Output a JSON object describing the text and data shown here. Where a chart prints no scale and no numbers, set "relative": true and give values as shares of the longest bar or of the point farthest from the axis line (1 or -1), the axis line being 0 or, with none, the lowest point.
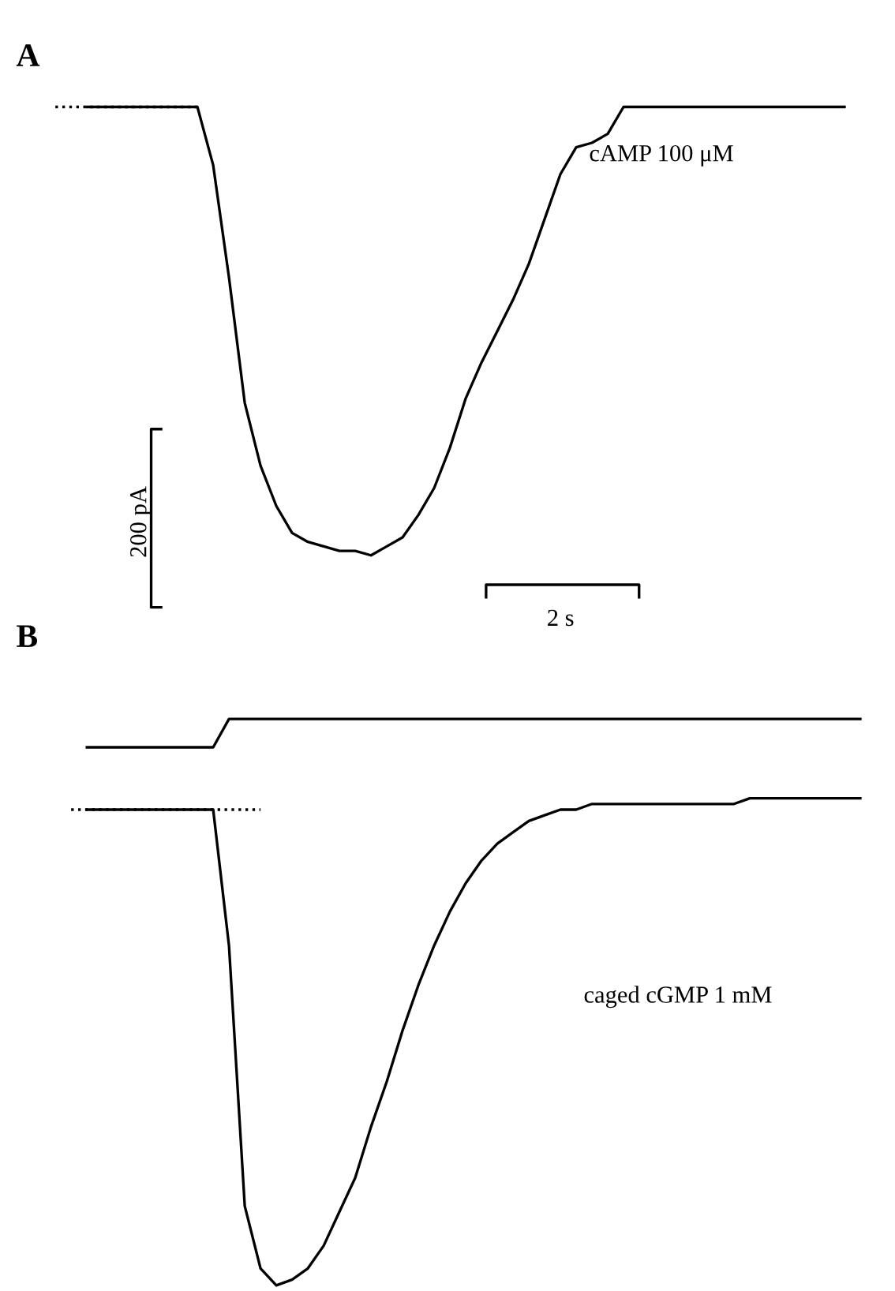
{
  "chart_data": [
    {
      "type": "line",
      "title": "A",
      "relative": true,
      "tick_labels": false,
      "annotations": [
        "cAMP 100 μM",
        "200 pA",
        "2 s"
      ],
      "categories": [
        null,
        null,
        null,
        null,
        null,
        null,
        null,
        null,
        null,
        null,
        null,
        null,
        null,
        null,
        null,
        null,
        null,
        null,
        null,
        null,
        null,
        null,
        null,
        null,
        null,
        null,
        null,
        null,
        null,
        null,
        null,
        null,
        null,
        null,
        null,
        null,
        null,
        null,
        null,
        null,
        null,
        null,
        null,
        null,
        null,
        null,
        null,
        null,
        null,
        null,
        null,
        null
      ],
      "series": [
        {
          "color": "#000000",
          "line_style": "dotted",
          "values": [
            1,
            1,
            1,
            1,
            1,
            1,
            1,
            1,
            1,
            1,
            null,
            null,
            null,
            null,
            null,
            null,
            null,
            null,
            null,
            null,
            null,
            null,
            null,
            null,
            null,
            null,
            null,
            null,
            null,
            null,
            null,
            null,
            null,
            null,
            null,
            null,
            null,
            null,
            null,
            null,
            null,
            null,
            null,
            null,
            null,
            null,
            null,
            null,
            null,
            null,
            null,
            null
          ]
        },
        {
          "color": "#000000",
          "line_style": "solid",
          "values": [
            null,
            null,
            1,
            1,
            1,
            1,
            1,
            1,
            1,
            1,
            0.87,
            0.62,
            0.34,
            0.2,
            0.11,
            0.05,
            0.03,
            0.02,
            0.01,
            0.01,
            0,
            0.02,
            0.04,
            0.09,
            0.15,
            0.24,
            0.35,
            0.43,
            0.5,
            0.57,
            0.65,
            0.75,
            0.85,
            0.91,
            0.92,
            0.94,
            1,
            1,
            1,
            1,
            1,
            1,
            1,
            1,
            1,
            1,
            1,
            1,
            1,
            1,
            1,
            null
          ]
        }
      ]
    },
    {
      "type": "line",
      "title": "B",
      "relative": true,
      "tick_labels": false,
      "annotations": [
        "caged cGMP 1 mM"
      ],
      "categories": [
        null,
        null,
        null,
        null,
        null,
        null,
        null,
        null,
        null,
        null,
        null,
        null,
        null,
        null,
        null,
        null,
        null,
        null,
        null,
        null,
        null,
        null,
        null,
        null,
        null,
        null,
        null,
        null,
        null,
        null,
        null,
        null,
        null,
        null,
        null,
        null,
        null,
        null,
        null,
        null,
        null,
        null,
        null,
        null,
        null,
        null,
        null,
        null,
        null,
        null,
        null
      ],
      "series": [
        {
          "color": "#000000",
          "line_style": "solid",
          "values": [
            null,
            0.95,
            0.95,
            0.95,
            0.95,
            0.95,
            0.95,
            0.95,
            0.95,
            0.95,
            1,
            1,
            1,
            1,
            1,
            1,
            1,
            1,
            1,
            1,
            1,
            1,
            1,
            1,
            1,
            1,
            1,
            1,
            1,
            1,
            1,
            1,
            1,
            1,
            1,
            1,
            1,
            1,
            1,
            1,
            1,
            1,
            1,
            1,
            1,
            1,
            1,
            1,
            1,
            1,
            1
          ]
        },
        {
          "color": "#000000",
          "line_style": "dotted",
          "values": [
            0.84,
            0.84,
            0.84,
            0.84,
            0.84,
            0.84,
            0.84,
            0.84,
            0.84,
            0.84,
            0.84,
            0.84,
            0.84,
            null,
            null,
            null,
            null,
            null,
            null,
            null,
            null,
            null,
            null,
            null,
            null,
            null,
            null,
            null,
            null,
            null,
            null,
            null,
            null,
            null,
            null,
            null,
            null,
            null,
            null,
            null,
            null,
            null,
            null,
            null,
            null,
            null,
            null,
            null,
            null,
            null,
            null
          ]
        },
        {
          "color": "#000000",
          "line_style": "solid",
          "values": [
            null,
            0.84,
            0.84,
            0.84,
            0.84,
            0.84,
            0.84,
            0.84,
            0.84,
            0.84,
            0.6,
            0.14,
            0.03,
            0,
            0.01,
            0.03,
            0.07,
            0.13,
            0.19,
            0.28,
            0.36,
            0.45,
            0.53,
            0.6,
            0.66,
            0.71,
            0.75,
            0.78,
            0.8,
            0.82,
            0.83,
            0.84,
            0.84,
            0.85,
            0.85,
            0.85,
            0.85,
            0.85,
            0.85,
            0.85,
            0.85,
            0.85,
            0.85,
            0.86,
            0.86,
            0.86,
            0.86,
            0.86,
            0.86,
            0.86,
            0.86
          ]
        }
      ]
    }
  ]
}
